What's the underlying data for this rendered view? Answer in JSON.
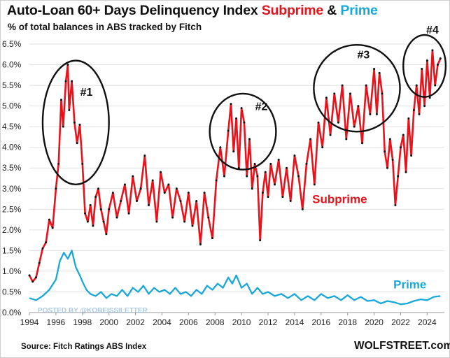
{
  "header": {
    "title_main": "Auto-Loan 60+ Days Delinquency Index ",
    "title_subprime": "Subprime",
    "title_amp": " & ",
    "title_prime": "Prime",
    "subtitle": "% of total balances in ABS tracked by Fitch"
  },
  "footer": {
    "source": "Source: Fitch Ratings ABS Index",
    "brand": "WOLFSTREET.com"
  },
  "watermark": "POSTED BY @KOBEISSILETTER",
  "chart_data": {
    "type": "line",
    "title": "Auto-Loan 60+ Days Delinquency Index Subprime & Prime",
    "ylabel": "% of total balances in ABS tracked by Fitch",
    "xlim": [
      1994,
      2025.3
    ],
    "ylim": [
      0,
      6.5
    ],
    "y_ticks": [
      0,
      0.5,
      1.0,
      1.5,
      2.0,
      2.5,
      3.0,
      3.5,
      4.0,
      4.5,
      5.0,
      5.5,
      6.0,
      6.5
    ],
    "y_tick_labels": [
      "0.0%",
      "0.5%",
      "1.0%",
      "1.5%",
      "2.0%",
      "2.5%",
      "3.0%",
      "3.5%",
      "4.0%",
      "4.5%",
      "5.0%",
      "5.5%",
      "6.0%",
      "6.5%"
    ],
    "x_ticks": [
      1994,
      1996,
      1998,
      2000,
      2002,
      2004,
      2006,
      2008,
      2010,
      2012,
      2014,
      2016,
      2018,
      2020,
      2022,
      2024
    ],
    "x_tick_labels": [
      "1994",
      "1996",
      "1998",
      "2000",
      "2002",
      "2004",
      "2006",
      "2008",
      "2010",
      "2012",
      "2014",
      "2016",
      "2018",
      "2020",
      "2022",
      "2024"
    ],
    "series": [
      {
        "name": "Subprime",
        "color": "#e8121b",
        "x": [
          1994.0,
          1994.25,
          1994.5,
          1994.75,
          1995.0,
          1995.25,
          1995.5,
          1995.75,
          1996.0,
          1996.2,
          1996.4,
          1996.55,
          1996.75,
          1996.9,
          1997.0,
          1997.2,
          1997.4,
          1997.6,
          1997.8,
          1998.0,
          1998.2,
          1998.4,
          1998.6,
          1998.8,
          1999.0,
          1999.2,
          1999.4,
          1999.6,
          1999.8,
          2000.0,
          2000.3,
          2000.6,
          2000.9,
          2001.2,
          2001.5,
          2001.8,
          2002.1,
          2002.4,
          2002.7,
          2003.0,
          2003.3,
          2003.6,
          2003.9,
          2004.2,
          2004.5,
          2004.8,
          2005.1,
          2005.4,
          2005.7,
          2006.0,
          2006.3,
          2006.6,
          2006.9,
          2007.2,
          2007.5,
          2007.8,
          2008.1,
          2008.4,
          2008.7,
          2009.0,
          2009.2,
          2009.4,
          2009.6,
          2009.8,
          2010.0,
          2010.2,
          2010.4,
          2010.6,
          2010.8,
          2011.0,
          2011.2,
          2011.4,
          2011.6,
          2011.8,
          2012.0,
          2012.2,
          2012.5,
          2012.8,
          2013.1,
          2013.4,
          2013.7,
          2014.0,
          2014.3,
          2014.6,
          2014.9,
          2015.2,
          2015.5,
          2015.8,
          2016.1,
          2016.4,
          2016.7,
          2017.0,
          2017.3,
          2017.6,
          2017.9,
          2018.2,
          2018.5,
          2018.8,
          2019.1,
          2019.4,
          2019.7,
          2020.0,
          2020.2,
          2020.4,
          2020.6,
          2020.8,
          2021.0,
          2021.2,
          2021.4,
          2021.6,
          2021.8,
          2022.0,
          2022.2,
          2022.4,
          2022.6,
          2022.8,
          2023.0,
          2023.2,
          2023.4,
          2023.6,
          2023.8,
          2024.0,
          2024.2,
          2024.4,
          2024.6,
          2024.8,
          2025.0
        ],
        "values": [
          0.9,
          0.75,
          0.85,
          1.2,
          1.55,
          1.7,
          2.25,
          2.05,
          3.0,
          3.6,
          5.15,
          4.5,
          5.6,
          6.0,
          4.9,
          5.6,
          4.6,
          4.1,
          4.55,
          3.6,
          2.4,
          2.2,
          2.6,
          2.1,
          2.8,
          3.0,
          2.5,
          2.2,
          1.9,
          2.5,
          2.9,
          2.3,
          2.7,
          3.1,
          2.4,
          3.3,
          2.7,
          3.0,
          3.8,
          2.6,
          3.2,
          2.2,
          3.4,
          2.9,
          3.1,
          2.3,
          3.0,
          2.7,
          2.2,
          2.9,
          2.1,
          2.7,
          1.65,
          2.9,
          2.3,
          1.8,
          3.2,
          4.0,
          3.3,
          4.4,
          5.05,
          3.9,
          4.7,
          3.5,
          4.95,
          4.6,
          3.3,
          4.2,
          3.0,
          3.6,
          3.3,
          1.75,
          2.9,
          3.4,
          2.8,
          3.6,
          3.1,
          3.7,
          2.8,
          3.5,
          2.7,
          3.8,
          3.3,
          2.5,
          3.6,
          4.2,
          3.1,
          4.6,
          4.0,
          5.2,
          4.3,
          5.3,
          4.6,
          5.5,
          4.2,
          5.3,
          4.5,
          5.0,
          4.1,
          5.5,
          4.8,
          5.9,
          4.8,
          5.8,
          5.3,
          3.9,
          3.5,
          4.2,
          3.7,
          2.6,
          3.3,
          4.0,
          4.3,
          3.4,
          4.7,
          3.8,
          4.9,
          5.5,
          4.8,
          5.9,
          5.0,
          6.1,
          5.2,
          6.35,
          5.5,
          6.0,
          6.15
        ]
      },
      {
        "name": "Prime",
        "color": "#1aa7d9",
        "x": [
          1994.0,
          1994.5,
          1995.0,
          1995.5,
          1996.0,
          1996.3,
          1996.6,
          1996.9,
          1997.2,
          1997.5,
          1997.8,
          1998.0,
          1998.3,
          1998.6,
          1999.0,
          1999.4,
          1999.8,
          2000.2,
          2000.6,
          2001.0,
          2001.4,
          2001.8,
          2002.2,
          2002.6,
          2003.0,
          2003.4,
          2003.8,
          2004.2,
          2004.6,
          2005.0,
          2005.4,
          2005.8,
          2006.2,
          2006.6,
          2007.0,
          2007.4,
          2007.8,
          2008.2,
          2008.6,
          2009.0,
          2009.3,
          2009.6,
          2010.0,
          2010.4,
          2010.8,
          2011.2,
          2011.6,
          2012.0,
          2012.5,
          2013.0,
          2013.5,
          2014.0,
          2014.5,
          2015.0,
          2015.5,
          2016.0,
          2016.5,
          2017.0,
          2017.5,
          2018.0,
          2018.5,
          2019.0,
          2019.5,
          2020.0,
          2020.5,
          2021.0,
          2021.5,
          2022.0,
          2022.5,
          2023.0,
          2023.5,
          2024.0,
          2024.5,
          2025.0
        ],
        "values": [
          0.35,
          0.3,
          0.4,
          0.55,
          0.8,
          1.25,
          1.45,
          1.3,
          1.5,
          1.1,
          0.9,
          0.75,
          0.55,
          0.45,
          0.4,
          0.5,
          0.35,
          0.45,
          0.4,
          0.55,
          0.4,
          0.6,
          0.5,
          0.65,
          0.45,
          0.6,
          0.5,
          0.55,
          0.45,
          0.6,
          0.45,
          0.5,
          0.4,
          0.55,
          0.45,
          0.65,
          0.55,
          0.7,
          0.6,
          0.85,
          0.7,
          0.9,
          0.6,
          0.7,
          0.45,
          0.6,
          0.45,
          0.5,
          0.4,
          0.45,
          0.35,
          0.45,
          0.3,
          0.4,
          0.3,
          0.45,
          0.35,
          0.4,
          0.3,
          0.42,
          0.3,
          0.38,
          0.28,
          0.3,
          0.22,
          0.28,
          0.25,
          0.2,
          0.22,
          0.28,
          0.32,
          0.3,
          0.38,
          0.4
        ]
      }
    ],
    "series_labels": [
      "Subprime",
      "Prime"
    ],
    "annotations": [
      {
        "label": "#1",
        "cx": 1997.5,
        "cy": 4.6,
        "rx": 2.5,
        "ry": 1.5,
        "lx": 1998.3,
        "ly": 5.25
      },
      {
        "label": "#2",
        "cx": 2010.1,
        "cy": 4.38,
        "rx": 2.5,
        "ry": 0.92,
        "lx": 2011.5,
        "ly": 4.9
      },
      {
        "label": "#3",
        "cx": 2018.7,
        "cy": 5.43,
        "rx": 3.25,
        "ry": 1.05,
        "lx": 2019.2,
        "ly": 6.15
      },
      {
        "label": "#4",
        "cx": 2023.8,
        "cy": 5.97,
        "rx": 1.6,
        "ry": 0.75,
        "lx": 2024.4,
        "ly": 6.75
      }
    ]
  }
}
